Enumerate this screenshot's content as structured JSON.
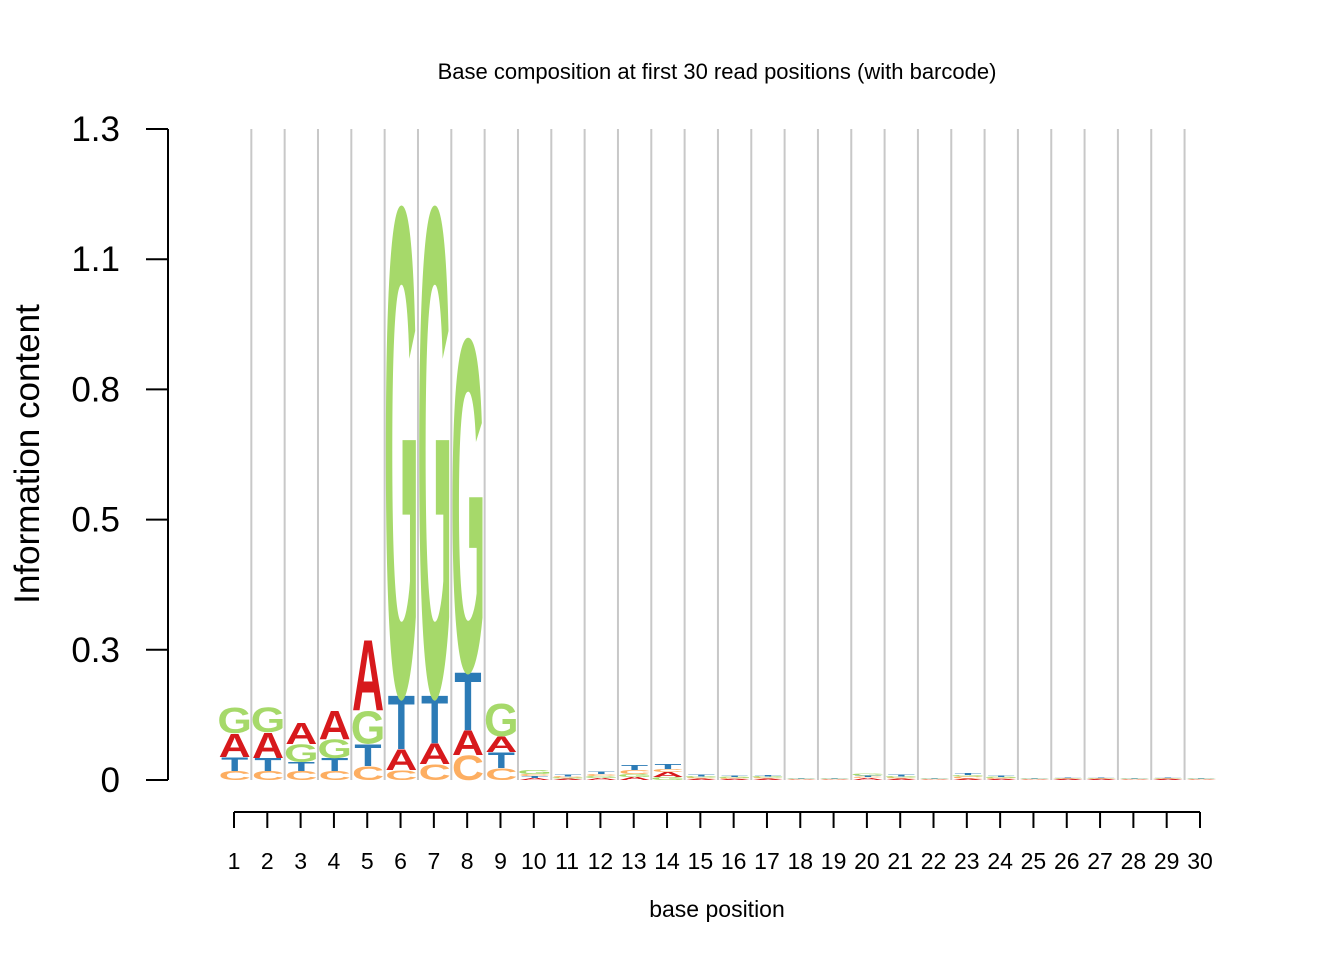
{
  "chart_data": {
    "type": "sequence-logo",
    "title": "Base composition at first 30 read positions (with barcode)",
    "xlabel": "base position",
    "ylabel": "Information content",
    "y_ticks": [
      "0",
      "0.3",
      "0.5",
      "0.8",
      "1.1",
      "1.3"
    ],
    "y_tick_values": [
      0,
      0.26,
      0.52,
      0.78,
      1.04,
      1.3
    ],
    "ylim": [
      0,
      1.3
    ],
    "x_ticks": [
      "1",
      "2",
      "3",
      "4",
      "5",
      "6",
      "7",
      "8",
      "9",
      "10",
      "11",
      "12",
      "13",
      "14",
      "15",
      "16",
      "17",
      "18",
      "19",
      "20",
      "21",
      "22",
      "23",
      "24",
      "25",
      "26",
      "27",
      "28",
      "29",
      "30"
    ],
    "grid": "vertical",
    "base_colors": {
      "A": "#d7191c",
      "C": "#fdae61",
      "G": "#a6d96a",
      "T": "#2c7bb6"
    },
    "positions": [
      {
        "pos": 1,
        "letters": [
          {
            "base": "C",
            "height": 0.018
          },
          {
            "base": "T",
            "height": 0.028
          },
          {
            "base": "A",
            "height": 0.048
          },
          {
            "base": "G",
            "height": 0.052
          }
        ]
      },
      {
        "pos": 2,
        "letters": [
          {
            "base": "C",
            "height": 0.018
          },
          {
            "base": "T",
            "height": 0.026
          },
          {
            "base": "A",
            "height": 0.052
          },
          {
            "base": "G",
            "height": 0.05
          }
        ]
      },
      {
        "pos": 3,
        "letters": [
          {
            "base": "C",
            "height": 0.018
          },
          {
            "base": "T",
            "height": 0.018
          },
          {
            "base": "G",
            "height": 0.036
          },
          {
            "base": "A",
            "height": 0.044
          }
        ]
      },
      {
        "pos": 4,
        "letters": [
          {
            "base": "C",
            "height": 0.018
          },
          {
            "base": "T",
            "height": 0.026
          },
          {
            "base": "G",
            "height": 0.038
          },
          {
            "base": "A",
            "height": 0.058
          }
        ]
      },
      {
        "pos": 5,
        "letters": [
          {
            "base": "C",
            "height": 0.028
          },
          {
            "base": "T",
            "height": 0.045
          },
          {
            "base": "G",
            "height": 0.066
          },
          {
            "base": "A",
            "height": 0.145
          }
        ]
      },
      {
        "pos": 6,
        "letters": [
          {
            "base": "C",
            "height": 0.02
          },
          {
            "base": "A",
            "height": 0.042
          },
          {
            "base": "T",
            "height": 0.11
          },
          {
            "base": "G",
            "height": 1.0
          }
        ]
      },
      {
        "pos": 7,
        "letters": [
          {
            "base": "C",
            "height": 0.032
          },
          {
            "base": "A",
            "height": 0.042
          },
          {
            "base": "T",
            "height": 0.098
          },
          {
            "base": "G",
            "height": 1.0
          }
        ]
      },
      {
        "pos": 8,
        "letters": [
          {
            "base": "C",
            "height": 0.05
          },
          {
            "base": "A",
            "height": 0.05
          },
          {
            "base": "T",
            "height": 0.12
          },
          {
            "base": "G",
            "height": 0.68
          }
        ]
      },
      {
        "pos": 9,
        "letters": [
          {
            "base": "C",
            "height": 0.024
          },
          {
            "base": "T",
            "height": 0.032
          },
          {
            "base": "A",
            "height": 0.032
          },
          {
            "base": "G",
            "height": 0.066
          }
        ]
      },
      {
        "pos": 10,
        "letters": [
          {
            "base": "A",
            "height": 0.004
          },
          {
            "base": "T",
            "height": 0.004
          },
          {
            "base": "C",
            "height": 0.004
          },
          {
            "base": "G",
            "height": 0.008
          }
        ]
      },
      {
        "pos": 11,
        "letters": [
          {
            "base": "A",
            "height": 0.003
          },
          {
            "base": "G",
            "height": 0.002
          },
          {
            "base": "C",
            "height": 0.002
          },
          {
            "base": "T",
            "height": 0.004
          }
        ]
      },
      {
        "pos": 12,
        "letters": [
          {
            "base": "A",
            "height": 0.004
          },
          {
            "base": "G",
            "height": 0.004
          },
          {
            "base": "C",
            "height": 0.004
          },
          {
            "base": "T",
            "height": 0.005
          }
        ]
      },
      {
        "pos": 13,
        "letters": [
          {
            "base": "A",
            "height": 0.006
          },
          {
            "base": "G",
            "height": 0.006
          },
          {
            "base": "C",
            "height": 0.008
          },
          {
            "base": "T",
            "height": 0.01
          }
        ]
      },
      {
        "pos": 14,
        "letters": [
          {
            "base": "G",
            "height": 0.006
          },
          {
            "base": "A",
            "height": 0.01
          },
          {
            "base": "C",
            "height": 0.006
          },
          {
            "base": "T",
            "height": 0.01
          }
        ]
      },
      {
        "pos": 15,
        "letters": [
          {
            "base": "A",
            "height": 0.003
          },
          {
            "base": "C",
            "height": 0.002
          },
          {
            "base": "G",
            "height": 0.002
          },
          {
            "base": "T",
            "height": 0.004
          }
        ]
      },
      {
        "pos": 16,
        "letters": [
          {
            "base": "A",
            "height": 0.002
          },
          {
            "base": "C",
            "height": 0.002
          },
          {
            "base": "G",
            "height": 0.002
          },
          {
            "base": "T",
            "height": 0.003
          }
        ]
      },
      {
        "pos": 17,
        "letters": [
          {
            "base": "A",
            "height": 0.003
          },
          {
            "base": "C",
            "height": 0.002
          },
          {
            "base": "G",
            "height": 0.002
          },
          {
            "base": "T",
            "height": 0.003
          }
        ]
      },
      {
        "pos": 18,
        "letters": [
          {
            "base": "A",
            "height": 0.001
          },
          {
            "base": "C",
            "height": 0.001
          },
          {
            "base": "G",
            "height": 0.001
          },
          {
            "base": "T",
            "height": 0.001
          }
        ]
      },
      {
        "pos": 19,
        "letters": [
          {
            "base": "A",
            "height": 0.001
          },
          {
            "base": "C",
            "height": 0.001
          },
          {
            "base": "G",
            "height": 0.001
          },
          {
            "base": "T",
            "height": 0.001
          }
        ]
      },
      {
        "pos": 20,
        "letters": [
          {
            "base": "A",
            "height": 0.004
          },
          {
            "base": "C",
            "height": 0.002
          },
          {
            "base": "T",
            "height": 0.003
          },
          {
            "base": "G",
            "height": 0.004
          }
        ]
      },
      {
        "pos": 21,
        "letters": [
          {
            "base": "A",
            "height": 0.003
          },
          {
            "base": "C",
            "height": 0.002
          },
          {
            "base": "G",
            "height": 0.002
          },
          {
            "base": "T",
            "height": 0.004
          }
        ]
      },
      {
        "pos": 22,
        "letters": [
          {
            "base": "A",
            "height": 0.001
          },
          {
            "base": "C",
            "height": 0.001
          },
          {
            "base": "G",
            "height": 0.001
          },
          {
            "base": "T",
            "height": 0.001
          }
        ]
      },
      {
        "pos": 23,
        "letters": [
          {
            "base": "A",
            "height": 0.003
          },
          {
            "base": "C",
            "height": 0.004
          },
          {
            "base": "G",
            "height": 0.003
          },
          {
            "base": "T",
            "height": 0.004
          }
        ]
      },
      {
        "pos": 24,
        "letters": [
          {
            "base": "A",
            "height": 0.002
          },
          {
            "base": "C",
            "height": 0.002
          },
          {
            "base": "G",
            "height": 0.002
          },
          {
            "base": "T",
            "height": 0.002
          }
        ]
      },
      {
        "pos": 25,
        "letters": [
          {
            "base": "A",
            "height": 0.001
          },
          {
            "base": "C",
            "height": 0.001
          },
          {
            "base": "G",
            "height": 0.001
          },
          {
            "base": "T",
            "height": 0.001
          }
        ]
      },
      {
        "pos": 26,
        "letters": [
          {
            "base": "A",
            "height": 0.002
          },
          {
            "base": "C",
            "height": 0.001
          },
          {
            "base": "G",
            "height": 0.001
          },
          {
            "base": "T",
            "height": 0.001
          }
        ]
      },
      {
        "pos": 27,
        "letters": [
          {
            "base": "A",
            "height": 0.002
          },
          {
            "base": "C",
            "height": 0.001
          },
          {
            "base": "G",
            "height": 0.001
          },
          {
            "base": "T",
            "height": 0.001
          }
        ]
      },
      {
        "pos": 28,
        "letters": [
          {
            "base": "A",
            "height": 0.001
          },
          {
            "base": "C",
            "height": 0.001
          },
          {
            "base": "G",
            "height": 0.001
          },
          {
            "base": "T",
            "height": 0.001
          }
        ]
      },
      {
        "pos": 29,
        "letters": [
          {
            "base": "A",
            "height": 0.002
          },
          {
            "base": "C",
            "height": 0.001
          },
          {
            "base": "G",
            "height": 0.001
          },
          {
            "base": "T",
            "height": 0.001
          }
        ]
      },
      {
        "pos": 30,
        "letters": [
          {
            "base": "A",
            "height": 0.001
          },
          {
            "base": "C",
            "height": 0.001
          },
          {
            "base": "G",
            "height": 0.001
          },
          {
            "base": "T",
            "height": 0.001
          }
        ]
      }
    ]
  }
}
